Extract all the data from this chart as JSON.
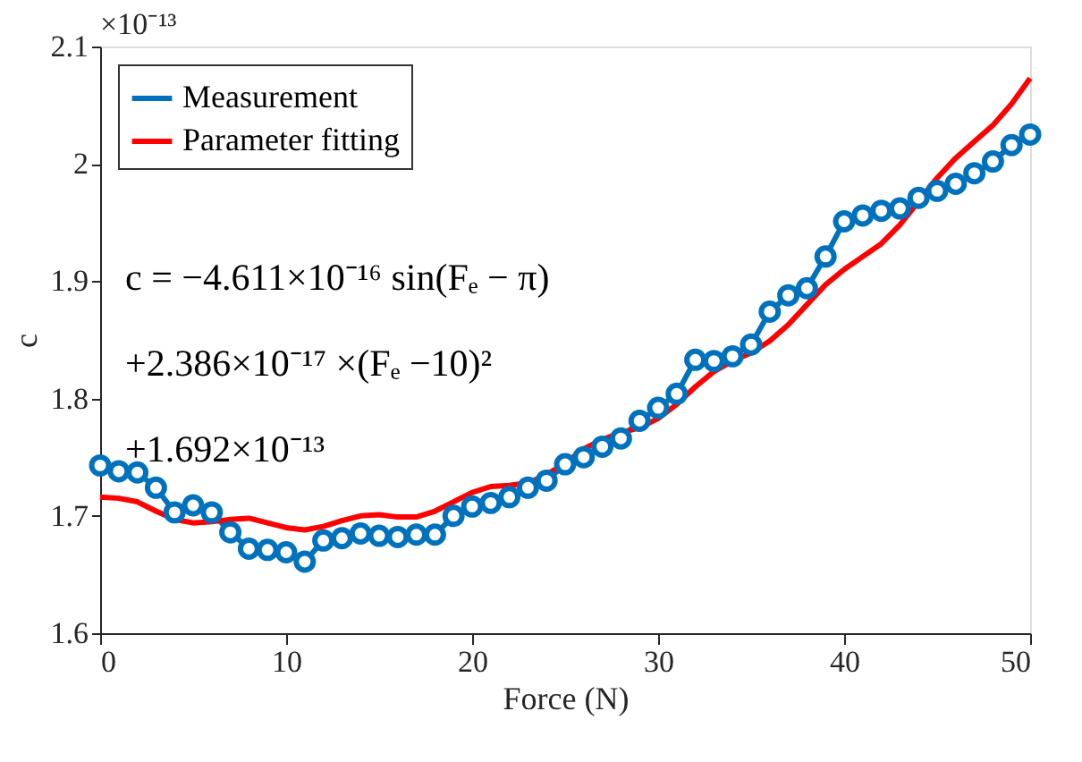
{
  "chart_data": {
    "type": "line",
    "xlabel": "Force (N)",
    "ylabel": "c",
    "x": [
      0,
      1,
      2,
      3,
      4,
      5,
      6,
      7,
      8,
      9,
      10,
      11,
      12,
      13,
      14,
      15,
      16,
      17,
      18,
      19,
      20,
      21,
      22,
      23,
      24,
      25,
      26,
      27,
      28,
      29,
      30,
      31,
      32,
      33,
      34,
      35,
      36,
      37,
      38,
      39,
      40,
      41,
      42,
      43,
      44,
      45,
      46,
      47,
      48,
      49,
      50
    ],
    "series": [
      {
        "name": "Measurement",
        "color": "#0072bd",
        "marker": "circle",
        "values": [
          1.743,
          1.738,
          1.737,
          1.724,
          1.703,
          1.709,
          1.703,
          1.686,
          1.672,
          1.671,
          1.669,
          1.661,
          1.679,
          1.681,
          1.685,
          1.683,
          1.682,
          1.684,
          1.684,
          1.7,
          1.708,
          1.711,
          1.716,
          1.724,
          1.73,
          1.744,
          1.75,
          1.759,
          1.766,
          1.781,
          1.792,
          1.804,
          1.833,
          1.832,
          1.836,
          1.846,
          1.874,
          1.888,
          1.894,
          1.921,
          1.951,
          1.956,
          1.96,
          1.962,
          1.971,
          1.977,
          1.983,
          1.992,
          2.002,
          2.016,
          2.025
        ]
      },
      {
        "name": "Parameter fitting",
        "color": "#ff0000",
        "marker": "none",
        "values": [
          1.716,
          1.715,
          1.712,
          1.704,
          1.697,
          1.694,
          1.695,
          1.697,
          1.698,
          1.694,
          1.69,
          1.688,
          1.691,
          1.696,
          1.7,
          1.701,
          1.699,
          1.699,
          1.704,
          1.712,
          1.72,
          1.725,
          1.726,
          1.728,
          1.735,
          1.745,
          1.757,
          1.765,
          1.771,
          1.775,
          1.783,
          1.795,
          1.81,
          1.823,
          1.832,
          1.839,
          1.849,
          1.863,
          1.88,
          1.897,
          1.91,
          1.921,
          1.932,
          1.948,
          1.968,
          1.988,
          2.005,
          2.019,
          2.033,
          2.051,
          2.073
        ]
      }
    ],
    "xlim": [
      0,
      50
    ],
    "xticks": [
      0,
      10,
      20,
      30,
      40,
      50
    ],
    "ylim": [
      1.6,
      2.1
    ],
    "yticks": [
      1.6,
      1.7,
      1.8,
      1.9,
      2,
      2.1
    ],
    "grid": false,
    "legend": "top left",
    "annotations": [
      "×10⁻¹³",
      "c = −4.611×10⁻¹⁶ sin(Fₑ − π)",
      "+2.386×10⁻¹⁷ ×(Fₑ −10)²",
      "+1.692×10⁻¹³"
    ]
  }
}
